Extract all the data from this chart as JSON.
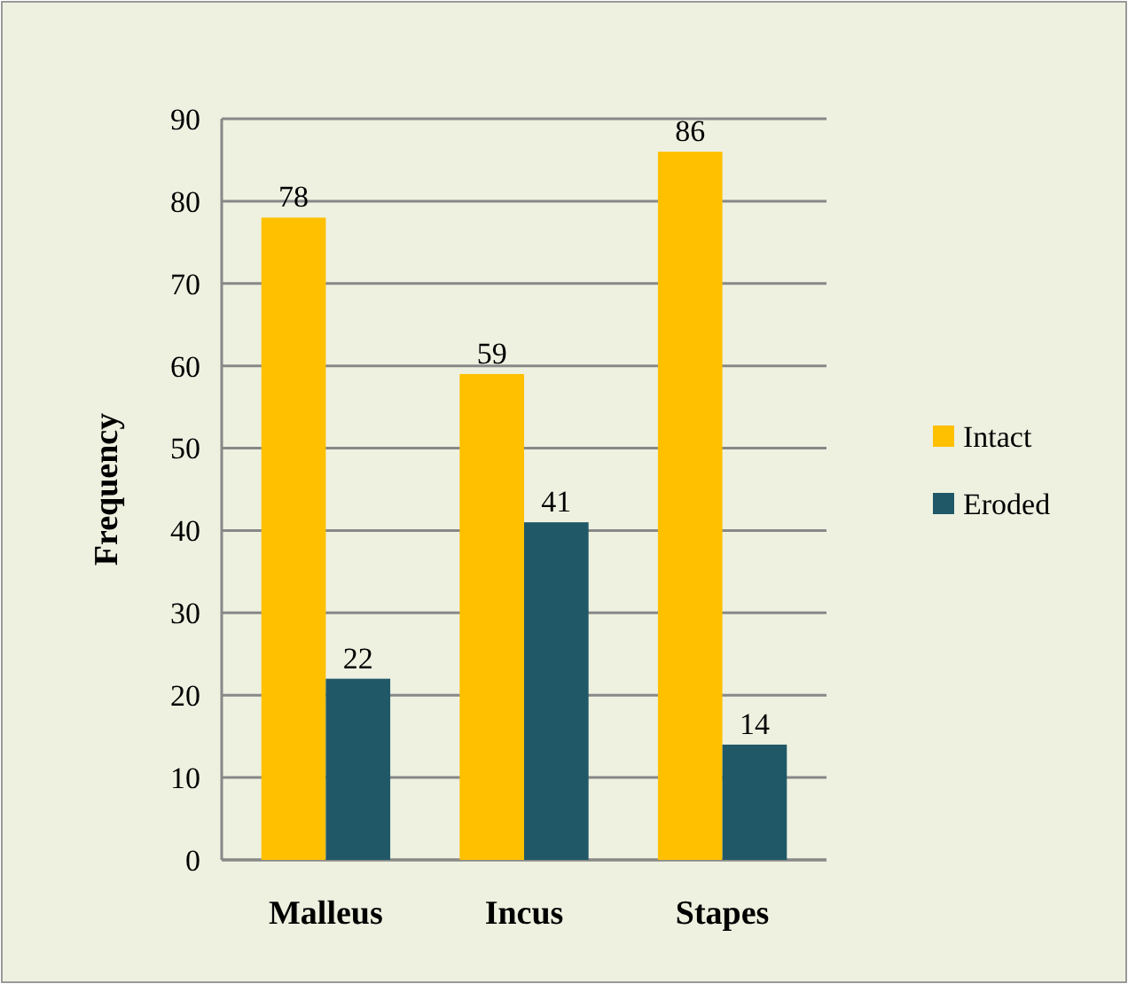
{
  "chart_data": {
    "type": "bar",
    "ylabel": "Frequency",
    "categories": [
      "Malleus",
      "Incus",
      "Stapes"
    ],
    "series": [
      {
        "name": "Intact",
        "color": "#ffc000",
        "values": [
          78,
          59,
          86
        ]
      },
      {
        "name": "Eroded",
        "color": "#215868",
        "values": [
          22,
          41,
          14
        ]
      }
    ],
    "ylim": [
      0,
      90
    ],
    "yticks": [
      0,
      10,
      20,
      30,
      40,
      50,
      60,
      70,
      80,
      90
    ],
    "grid": "y",
    "legend": "right",
    "data_labels": true
  }
}
